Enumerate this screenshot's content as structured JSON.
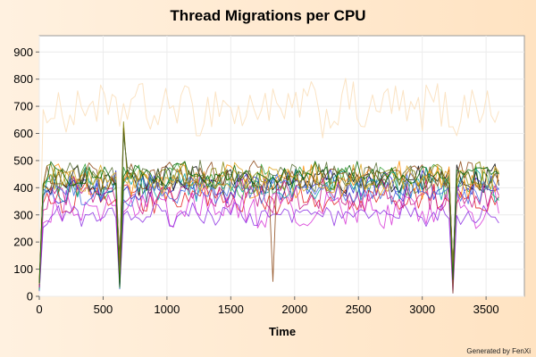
{
  "chart_data": {
    "type": "line",
    "title": "Thread Migrations per CPU",
    "xlabel": "Time",
    "ylabel": "",
    "xlim": [
      0,
      3800
    ],
    "ylim": [
      0,
      960
    ],
    "x_ticks": [
      "0",
      "500",
      "1000",
      "1500",
      "2000",
      "2500",
      "3000",
      "3500"
    ],
    "y_ticks": [
      "0",
      "100",
      "200",
      "300",
      "400",
      "500",
      "600",
      "700",
      "800",
      "900"
    ],
    "x_step": 30,
    "x_end": 3600,
    "grid": true,
    "legend": "none",
    "series": [
      {
        "color": "#fbe3c3",
        "base": 690,
        "amp": 85,
        "phase": 0.0
      },
      {
        "color": "#2f9e2f",
        "base": 420,
        "amp": 55,
        "phase": 0.3
      },
      {
        "color": "#e31a1c",
        "base": 360,
        "amp": 45,
        "phase": 1.1
      },
      {
        "color": "#1f1fd1",
        "base": 405,
        "amp": 50,
        "phase": 2.0
      },
      {
        "color": "#000000",
        "base": 430,
        "amp": 45,
        "phase": 2.7
      },
      {
        "color": "#d62fd6",
        "base": 320,
        "amp": 55,
        "phase": 3.5
      },
      {
        "color": "#8a2be2",
        "base": 300,
        "amp": 35,
        "phase": 4.2
      },
      {
        "color": "#ff8c00",
        "base": 425,
        "amp": 55,
        "phase": 5.0
      },
      {
        "color": "#808000",
        "base": 440,
        "amp": 45,
        "phase": 5.8
      },
      {
        "color": "#00a0a0",
        "base": 410,
        "amp": 50,
        "phase": 0.7
      },
      {
        "color": "#8b4513",
        "base": 440,
        "amp": 45,
        "phase": 1.6
      },
      {
        "color": "#c71585",
        "base": 375,
        "amp": 55,
        "phase": 2.4
      },
      {
        "color": "#556b2f",
        "base": 435,
        "amp": 50,
        "phase": 3.1
      },
      {
        "color": "#4169e1",
        "base": 390,
        "amp": 45,
        "phase": 3.9
      },
      {
        "color": "#daa520",
        "base": 430,
        "amp": 50,
        "phase": 4.6
      },
      {
        "color": "#006400",
        "base": 450,
        "amp": 40,
        "phase": 5.3
      }
    ]
  },
  "footer": "Generated by FenXi"
}
